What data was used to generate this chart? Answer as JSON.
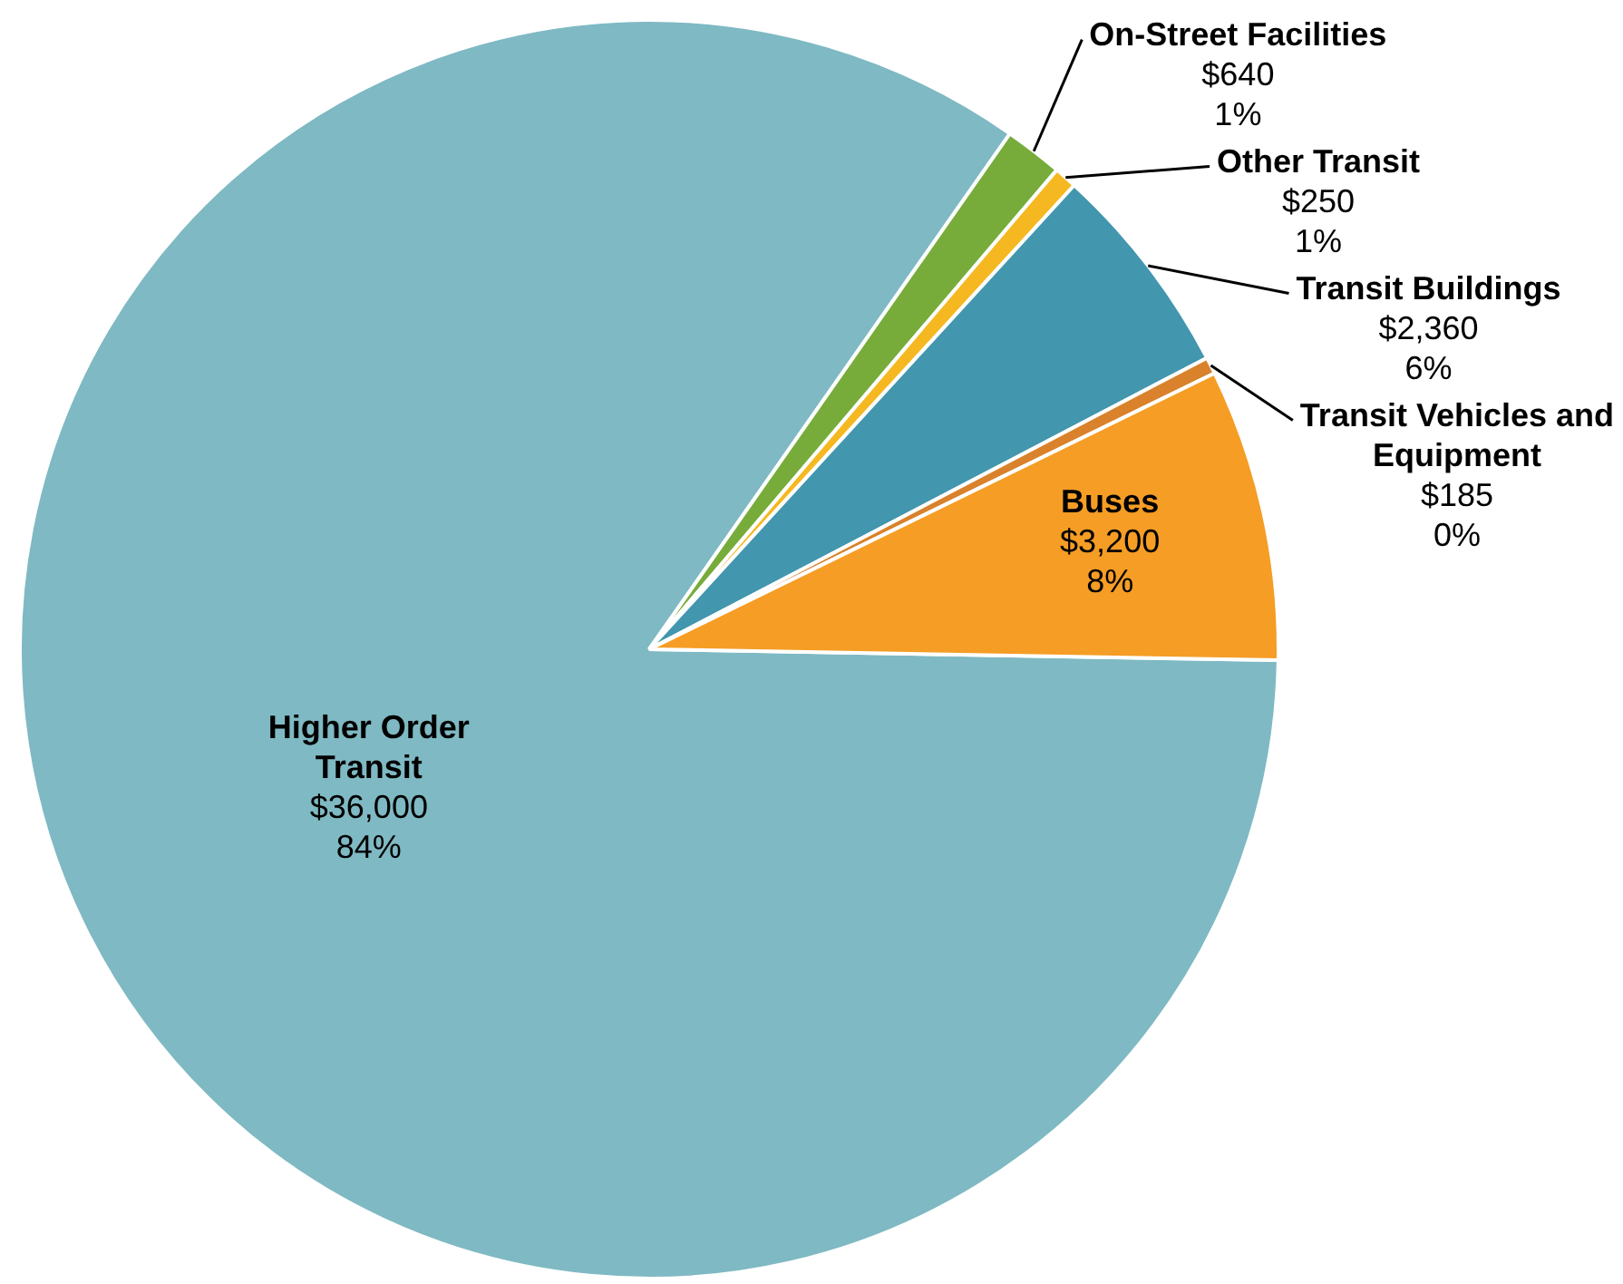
{
  "chart_data": {
    "type": "pie",
    "categories": [
      "Higher Order Transit",
      "On-Street Facilities",
      "Other Transit",
      "Transit Buildings",
      "Transit Vehicles and Equipment",
      "Buses"
    ],
    "values": [
      36000,
      640,
      250,
      2360,
      185,
      3200
    ],
    "colors": [
      "#7fb9c3",
      "#77ac3b",
      "#f5b820",
      "#4296ad",
      "#d9822b",
      "#f59d25"
    ],
    "value_labels": [
      "$36,000\n84%",
      "$640\n1%",
      "$250\n1%",
      "$2,360\n6%",
      "$185\n0%",
      "$3,200\n8%"
    ]
  }
}
